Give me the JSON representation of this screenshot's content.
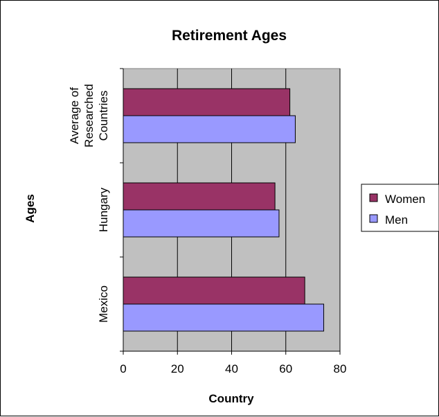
{
  "chart_data": {
    "type": "bar",
    "orientation": "horizontal",
    "title": "Retirement Ages",
    "xlabel": "Country",
    "ylabel": "Ages",
    "categories": [
      "Mexico",
      "Hungary",
      "Average of Researched Countries"
    ],
    "series": [
      {
        "name": "Women",
        "values": [
          67,
          56,
          61.5
        ],
        "color": "#993366"
      },
      {
        "name": "Men",
        "values": [
          74,
          57.5,
          63.5
        ],
        "color": "#9999FF"
      }
    ],
    "xlim": [
      0,
      80
    ],
    "xticks": [
      0,
      20,
      40,
      60,
      80
    ],
    "grid": true,
    "plot_background": "#C0C0C0",
    "legend_position": "right"
  }
}
